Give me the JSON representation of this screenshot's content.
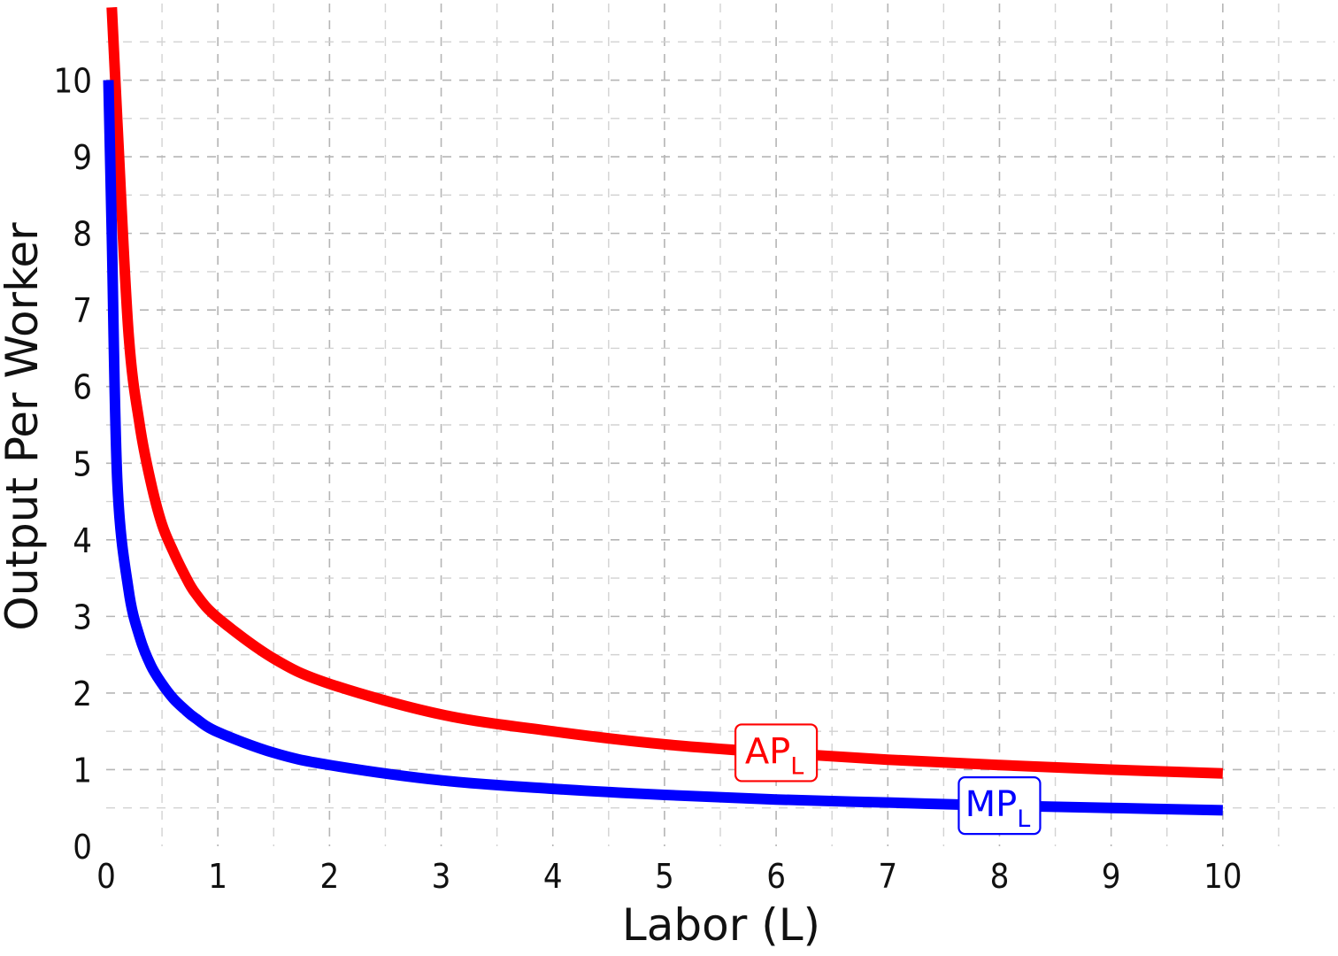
{
  "chart_data": {
    "type": "line",
    "xlabel": "Labor (L)",
    "ylabel": "Output Per Worker",
    "xlim": [
      0,
      11
    ],
    "ylim": [
      0,
      11
    ],
    "xticks": [
      0,
      1,
      2,
      3,
      4,
      5,
      6,
      7,
      8,
      9,
      10
    ],
    "yticks": [
      0,
      1,
      2,
      3,
      4,
      5,
      6,
      7,
      8,
      9,
      10
    ],
    "grid": true,
    "series": [
      {
        "name": "AP",
        "name_subscript": "L",
        "color": "#ff0000",
        "x": [
          0.05,
          0.1,
          0.2,
          0.3,
          0.4,
          0.5,
          0.6,
          0.7,
          0.8,
          1,
          1.5,
          2,
          3,
          4,
          5,
          6,
          7,
          8,
          9,
          10
        ],
        "y": [
          10.95,
          9.45,
          6.7,
          5.5,
          4.75,
          4.2,
          3.85,
          3.55,
          3.3,
          2.98,
          2.45,
          2.12,
          1.72,
          1.5,
          1.33,
          1.22,
          1.13,
          1.06,
          1.0,
          0.95
        ],
        "label_at_x": 6
      },
      {
        "name": "MP",
        "name_subscript": "L",
        "color": "#0000ff",
        "x": [
          0.02,
          0.05,
          0.1,
          0.2,
          0.3,
          0.4,
          0.5,
          0.6,
          0.7,
          0.8,
          1,
          1.5,
          2,
          3,
          4,
          5,
          6,
          7,
          8,
          9,
          10
        ],
        "y": [
          10.0,
          8.0,
          4.75,
          3.35,
          2.73,
          2.36,
          2.12,
          1.93,
          1.79,
          1.67,
          1.49,
          1.22,
          1.06,
          0.86,
          0.75,
          0.67,
          0.61,
          0.57,
          0.53,
          0.5,
          0.47
        ],
        "label_at_x": 8
      }
    ]
  }
}
